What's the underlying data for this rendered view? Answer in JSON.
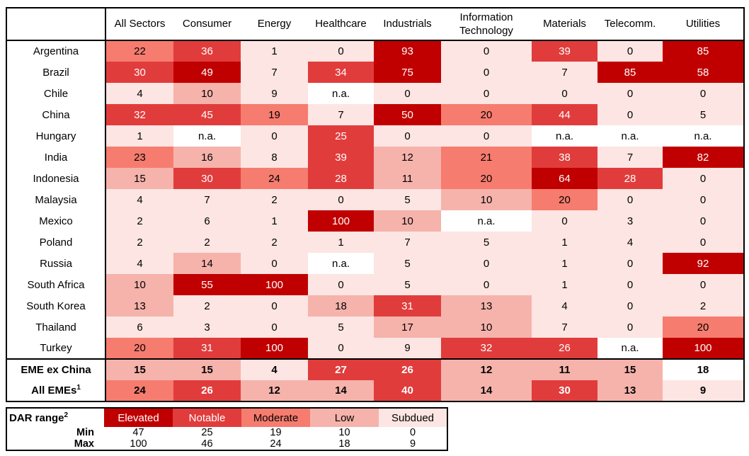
{
  "colors": {
    "elevated": "#C00000",
    "notable": "#E13C3C",
    "moderate": "#F67C6F",
    "low": "#F5B3AC",
    "subdued": "#FCE5E2",
    "na": "#FFFFFF",
    "text_dark": "#000000",
    "text_light": "#FFFFFF",
    "border": "#000000"
  },
  "chart_data": {
    "type": "heatmap",
    "na_label": "n.a.",
    "corner_label": "",
    "columns": [
      "All Sectors",
      "Consumer",
      "Energy",
      "Healthcare",
      "Industrials",
      "Information Technology",
      "Materials",
      "Telecomm.",
      "Utilities"
    ],
    "rows": [
      {
        "label": "Argentina",
        "values": [
          22,
          36,
          1,
          0,
          93,
          0,
          39,
          0,
          85
        ]
      },
      {
        "label": "Brazil",
        "values": [
          30,
          49,
          7,
          34,
          75,
          0,
          7,
          85,
          58
        ]
      },
      {
        "label": "Chile",
        "values": [
          4,
          10,
          9,
          null,
          0,
          0,
          0,
          0,
          0
        ]
      },
      {
        "label": "China",
        "values": [
          32,
          45,
          19,
          7,
          50,
          20,
          44,
          0,
          5
        ]
      },
      {
        "label": "Hungary",
        "values": [
          1,
          null,
          0,
          25,
          0,
          0,
          null,
          null,
          null
        ]
      },
      {
        "label": "India",
        "values": [
          23,
          16,
          8,
          39,
          12,
          21,
          38,
          7,
          82
        ]
      },
      {
        "label": "Indonesia",
        "values": [
          15,
          30,
          24,
          28,
          11,
          20,
          64,
          28,
          0
        ]
      },
      {
        "label": "Malaysia",
        "values": [
          4,
          7,
          2,
          0,
          5,
          10,
          20,
          0,
          0
        ]
      },
      {
        "label": "Mexico",
        "values": [
          2,
          6,
          1,
          100,
          10,
          null,
          0,
          3,
          0
        ]
      },
      {
        "label": "Poland",
        "values": [
          2,
          2,
          2,
          1,
          7,
          5,
          1,
          4,
          0
        ]
      },
      {
        "label": "Russia",
        "values": [
          4,
          14,
          0,
          null,
          5,
          0,
          1,
          0,
          92
        ]
      },
      {
        "label": "South Africa",
        "values": [
          10,
          55,
          100,
          0,
          5,
          0,
          1,
          0,
          0
        ]
      },
      {
        "label": "South Korea",
        "values": [
          13,
          2,
          0,
          18,
          31,
          13,
          4,
          0,
          2
        ]
      },
      {
        "label": "Thailand",
        "values": [
          6,
          3,
          0,
          5,
          17,
          10,
          7,
          0,
          20
        ]
      },
      {
        "label": "Turkey",
        "values": [
          20,
          31,
          100,
          0,
          9,
          32,
          26,
          null,
          100
        ]
      },
      {
        "label": "EME ex China",
        "bold": true,
        "thick_top": true,
        "no_fill_cols": [
          8
        ],
        "values": [
          15,
          15,
          4,
          27,
          26,
          12,
          11,
          15,
          18
        ]
      },
      {
        "label": "All EMEs",
        "sup": "1",
        "bold": true,
        "values": [
          24,
          26,
          12,
          14,
          40,
          14,
          30,
          13,
          9
        ]
      }
    ]
  },
  "legend": {
    "title": "DAR range",
    "title_sup": "2",
    "min_label": "Min",
    "max_label": "Max",
    "categories": [
      {
        "label": "Elevated",
        "key": "elevated",
        "min": 47,
        "max": 100,
        "text": "light"
      },
      {
        "label": "Notable",
        "key": "notable",
        "min": 25,
        "max": 46,
        "text": "light"
      },
      {
        "label": "Moderate",
        "key": "moderate",
        "min": 19,
        "max": 24,
        "text": "dark"
      },
      {
        "label": "Low",
        "key": "low",
        "min": 10,
        "max": 18,
        "text": "dark"
      },
      {
        "label": "Subdued",
        "key": "subdued",
        "min": 0,
        "max": 9,
        "text": "dark"
      }
    ]
  }
}
